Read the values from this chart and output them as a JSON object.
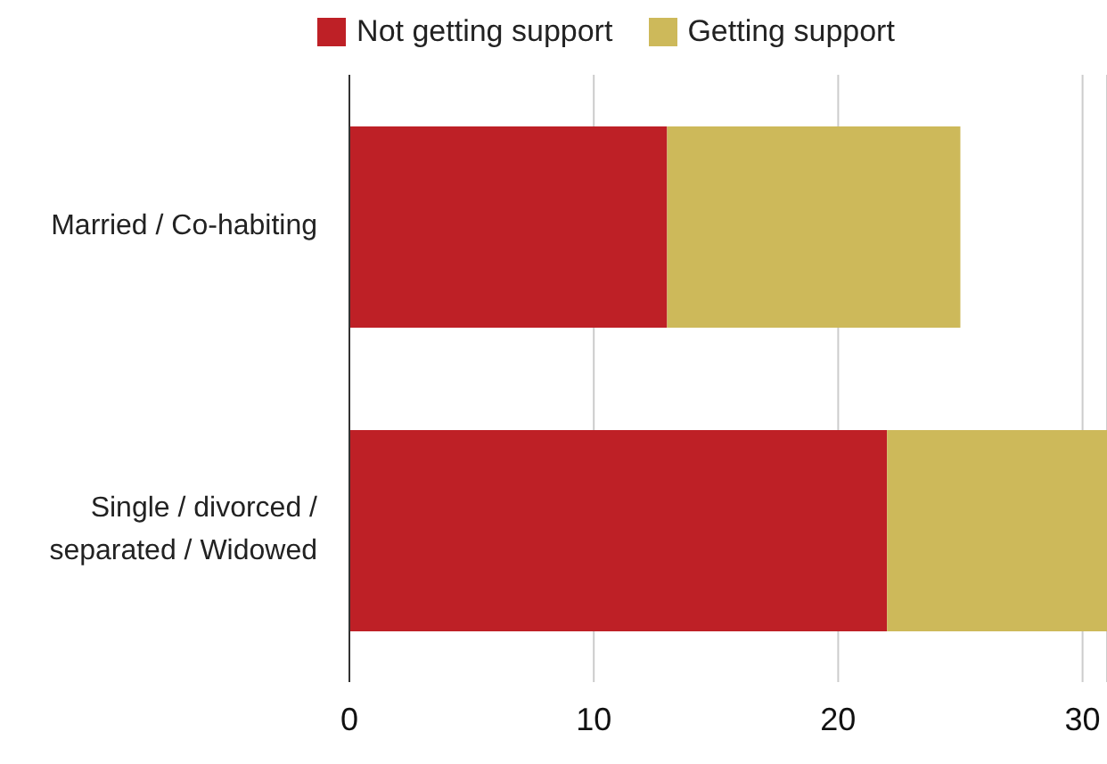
{
  "chart_data": {
    "type": "bar",
    "orientation": "horizontal",
    "stacked": true,
    "categories": [
      "Married / Co-habiting",
      "Single / divorced / separated / Widowed"
    ],
    "series": [
      {
        "name": "Not getting support",
        "color": "#be2026",
        "values": [
          13,
          22
        ]
      },
      {
        "name": "Getting support",
        "color": "#cdb95a",
        "values": [
          12,
          9
        ]
      }
    ],
    "xlim": [
      0,
      31
    ],
    "xticks": [
      0,
      10,
      20,
      30
    ],
    "grid": "x",
    "legend": "top"
  }
}
